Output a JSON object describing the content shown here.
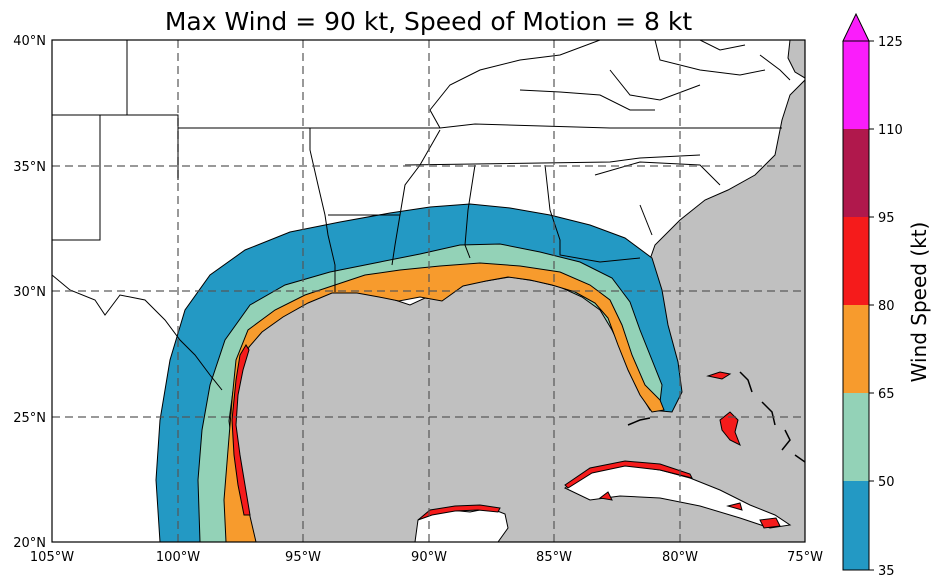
{
  "title": "Max Wind = 90 kt, Speed of Motion = 8 kt",
  "map": {
    "extent": {
      "lon": [
        -105,
        -75
      ],
      "lat": [
        20,
        40
      ]
    },
    "xticks": [
      "105°W",
      "100°W",
      "95°W",
      "90°W",
      "85°W",
      "80°W",
      "75°W"
    ],
    "yticks": [
      "20°N",
      "25°N",
      "30°N",
      "35°N",
      "40°N"
    ],
    "grid": true,
    "ocean_color": "#c0c0c0",
    "land_color": "#ffffff"
  },
  "colorbar": {
    "label": "Wind Speed (kt)",
    "ticks": [
      "35",
      "50",
      "65",
      "80",
      "95",
      "110",
      "125"
    ],
    "bins": [
      {
        "from": 35,
        "to": 50,
        "color": "#2399c4"
      },
      {
        "from": 50,
        "to": 65,
        "color": "#93d2b7"
      },
      {
        "from": 65,
        "to": 80,
        "color": "#f79b2d"
      },
      {
        "from": 80,
        "to": 95,
        "color": "#f51b1b"
      },
      {
        "from": 95,
        "to": 110,
        "color": "#b0184c"
      },
      {
        "from": 110,
        "to": 125,
        "color": "#fa1dfb"
      }
    ],
    "extend": "max"
  }
}
